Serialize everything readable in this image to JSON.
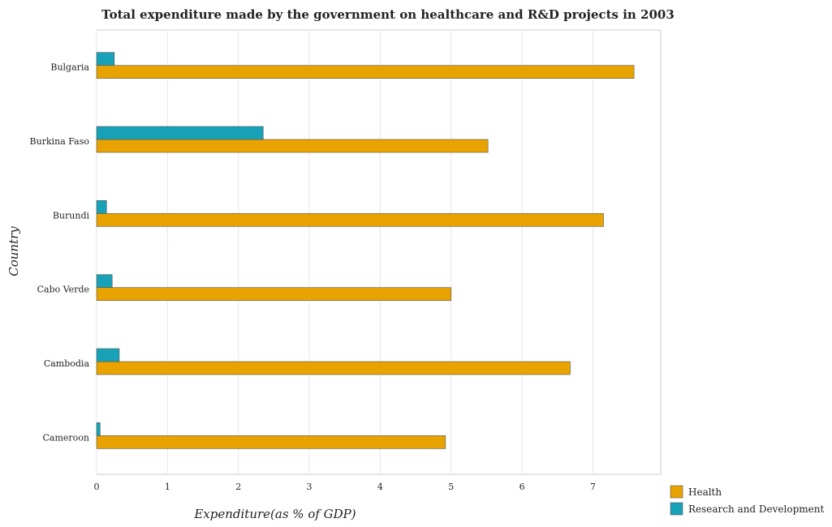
{
  "chart_data": {
    "type": "bar",
    "orientation": "horizontal",
    "title": "Total expenditure made by the government on healthcare and R&D projects in 2003",
    "xlabel": "Expenditure(as % of GDP)",
    "ylabel": "Country",
    "categories": [
      "Bulgaria",
      "Burkina Faso",
      "Burundi",
      "Cabo Verde",
      "Cambodia",
      "Cameroon"
    ],
    "series": [
      {
        "name": "Health",
        "color": "#e8a300",
        "values": [
          7.58,
          5.52,
          7.15,
          5.0,
          6.68,
          4.92
        ]
      },
      {
        "name": "Research and Development",
        "color": "#17a2b8",
        "values": [
          0.25,
          2.35,
          0.14,
          0.22,
          0.32,
          0.05
        ]
      }
    ],
    "xlim": [
      0,
      8
    ],
    "xticks": [
      "0",
      "1",
      "2",
      "3",
      "4",
      "5",
      "6",
      "7"
    ],
    "grid": true,
    "legend_position": "bottom-right"
  }
}
